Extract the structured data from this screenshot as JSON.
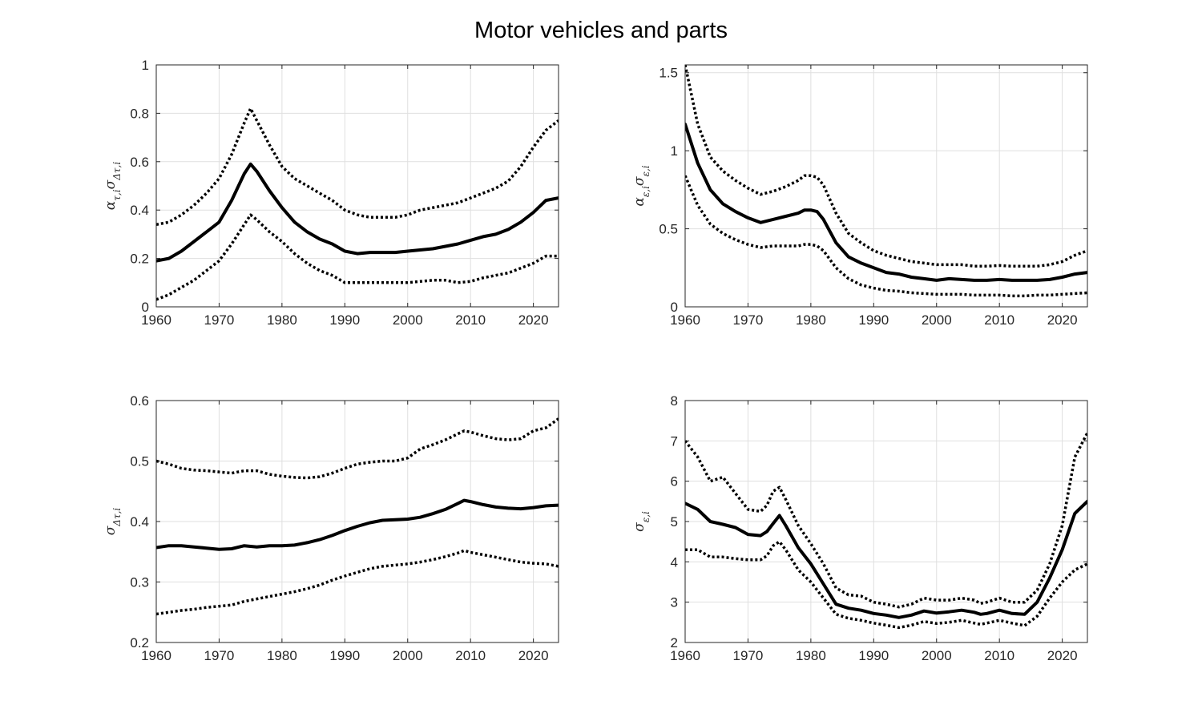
{
  "figure": {
    "title": "Motor vehicles and parts"
  },
  "chart_data": [
    {
      "type": "line",
      "ylabel": "α_{τ,i}σ_{Δτ,i}",
      "xlim": [
        1960,
        2024
      ],
      "ylim": [
        0,
        1
      ],
      "xticks": [
        "1960",
        "1970",
        "1980",
        "1990",
        "2000",
        "2010",
        "2020"
      ],
      "yticks": [
        "0",
        "0.2",
        "0.4",
        "0.6",
        "0.8",
        "1"
      ],
      "grid": true,
      "x": [
        1960,
        1962,
        1964,
        1966,
        1968,
        1970,
        1972,
        1974,
        1975,
        1976,
        1978,
        1980,
        1982,
        1984,
        1986,
        1988,
        1990,
        1992,
        1994,
        1996,
        1998,
        2000,
        2002,
        2004,
        2006,
        2008,
        2010,
        2012,
        2014,
        2016,
        2018,
        2020,
        2022,
        2024
      ],
      "series": [
        {
          "style": "solid",
          "values": [
            0.19,
            0.2,
            0.23,
            0.27,
            0.31,
            0.35,
            0.44,
            0.55,
            0.59,
            0.56,
            0.48,
            0.41,
            0.35,
            0.31,
            0.28,
            0.26,
            0.23,
            0.22,
            0.225,
            0.225,
            0.225,
            0.23,
            0.235,
            0.24,
            0.25,
            0.26,
            0.275,
            0.29,
            0.3,
            0.32,
            0.35,
            0.39,
            0.44,
            0.45
          ]
        },
        {
          "style": "dotted",
          "values": [
            0.34,
            0.35,
            0.38,
            0.42,
            0.47,
            0.53,
            0.63,
            0.76,
            0.82,
            0.77,
            0.67,
            0.58,
            0.53,
            0.5,
            0.47,
            0.44,
            0.4,
            0.38,
            0.37,
            0.37,
            0.37,
            0.38,
            0.4,
            0.41,
            0.42,
            0.43,
            0.45,
            0.47,
            0.49,
            0.52,
            0.58,
            0.66,
            0.73,
            0.77
          ]
        },
        {
          "style": "dotted",
          "values": [
            0.03,
            0.05,
            0.08,
            0.11,
            0.15,
            0.19,
            0.26,
            0.34,
            0.38,
            0.36,
            0.31,
            0.27,
            0.22,
            0.18,
            0.15,
            0.13,
            0.1,
            0.1,
            0.1,
            0.1,
            0.1,
            0.1,
            0.105,
            0.11,
            0.11,
            0.1,
            0.105,
            0.12,
            0.13,
            0.14,
            0.16,
            0.18,
            0.21,
            0.21
          ]
        }
      ]
    },
    {
      "type": "line",
      "ylabel": "α_{ε,i}σ_{ε,i}",
      "xlim": [
        1960,
        2024
      ],
      "ylim": [
        0,
        1.55
      ],
      "xticks": [
        "1960",
        "1970",
        "1980",
        "1990",
        "2000",
        "2010",
        "2020"
      ],
      "yticks": [
        "0",
        "0.5",
        "1",
        "1.5"
      ],
      "grid": true,
      "x": [
        1960,
        1962,
        1964,
        1966,
        1968,
        1970,
        1972,
        1974,
        1976,
        1978,
        1979,
        1980,
        1981,
        1982,
        1984,
        1986,
        1988,
        1990,
        1992,
        1994,
        1996,
        1998,
        2000,
        2002,
        2004,
        2006,
        2008,
        2010,
        2012,
        2014,
        2016,
        2018,
        2020,
        2022,
        2024
      ],
      "series": [
        {
          "style": "solid",
          "values": [
            1.17,
            0.92,
            0.75,
            0.66,
            0.61,
            0.57,
            0.54,
            0.56,
            0.58,
            0.6,
            0.62,
            0.62,
            0.61,
            0.56,
            0.41,
            0.32,
            0.28,
            0.25,
            0.22,
            0.21,
            0.19,
            0.18,
            0.17,
            0.18,
            0.175,
            0.17,
            0.17,
            0.175,
            0.17,
            0.17,
            0.17,
            0.175,
            0.19,
            0.21,
            0.22
          ]
        },
        {
          "style": "dotted",
          "values": [
            1.55,
            1.17,
            0.96,
            0.87,
            0.81,
            0.76,
            0.72,
            0.74,
            0.77,
            0.81,
            0.84,
            0.84,
            0.83,
            0.78,
            0.6,
            0.47,
            0.41,
            0.36,
            0.33,
            0.31,
            0.29,
            0.28,
            0.27,
            0.27,
            0.27,
            0.26,
            0.26,
            0.265,
            0.26,
            0.26,
            0.26,
            0.27,
            0.29,
            0.33,
            0.36
          ]
        },
        {
          "style": "dotted",
          "values": [
            0.84,
            0.65,
            0.53,
            0.47,
            0.43,
            0.4,
            0.38,
            0.39,
            0.39,
            0.39,
            0.4,
            0.4,
            0.39,
            0.36,
            0.25,
            0.18,
            0.14,
            0.12,
            0.105,
            0.1,
            0.09,
            0.085,
            0.08,
            0.08,
            0.08,
            0.075,
            0.075,
            0.075,
            0.07,
            0.07,
            0.075,
            0.075,
            0.08,
            0.085,
            0.09
          ]
        }
      ]
    },
    {
      "type": "line",
      "ylabel": "σ_{Δτ,i}",
      "xlim": [
        1960,
        2024
      ],
      "ylim": [
        0.2,
        0.6
      ],
      "xticks": [
        "1960",
        "1970",
        "1980",
        "1990",
        "2000",
        "2010",
        "2020"
      ],
      "yticks": [
        "0.2",
        "0.3",
        "0.4",
        "0.5",
        "0.6"
      ],
      "grid": true,
      "x": [
        1960,
        1962,
        1964,
        1966,
        1968,
        1970,
        1972,
        1974,
        1976,
        1978,
        1980,
        1982,
        1984,
        1986,
        1988,
        1990,
        1992,
        1994,
        1996,
        1998,
        2000,
        2002,
        2004,
        2006,
        2008,
        2009,
        2010,
        2012,
        2014,
        2016,
        2018,
        2020,
        2022,
        2024
      ],
      "series": [
        {
          "style": "solid",
          "values": [
            0.357,
            0.36,
            0.36,
            0.358,
            0.356,
            0.354,
            0.355,
            0.36,
            0.358,
            0.36,
            0.36,
            0.361,
            0.365,
            0.37,
            0.377,
            0.385,
            0.392,
            0.398,
            0.402,
            0.403,
            0.404,
            0.407,
            0.413,
            0.42,
            0.43,
            0.435,
            0.433,
            0.428,
            0.424,
            0.422,
            0.421,
            0.423,
            0.426,
            0.427
          ]
        },
        {
          "style": "dotted",
          "values": [
            0.5,
            0.495,
            0.488,
            0.485,
            0.484,
            0.482,
            0.48,
            0.484,
            0.484,
            0.478,
            0.475,
            0.473,
            0.472,
            0.474,
            0.48,
            0.488,
            0.495,
            0.498,
            0.5,
            0.5,
            0.505,
            0.52,
            0.527,
            0.535,
            0.545,
            0.55,
            0.548,
            0.542,
            0.537,
            0.535,
            0.537,
            0.55,
            0.555,
            0.57
          ]
        },
        {
          "style": "dotted",
          "values": [
            0.247,
            0.25,
            0.253,
            0.255,
            0.258,
            0.26,
            0.262,
            0.268,
            0.272,
            0.276,
            0.28,
            0.284,
            0.289,
            0.295,
            0.303,
            0.31,
            0.316,
            0.322,
            0.326,
            0.328,
            0.33,
            0.333,
            0.337,
            0.342,
            0.348,
            0.352,
            0.349,
            0.345,
            0.341,
            0.337,
            0.333,
            0.331,
            0.33,
            0.326
          ]
        }
      ]
    },
    {
      "type": "line",
      "ylabel": "σ_{ε,i}",
      "xlim": [
        1960,
        2024
      ],
      "ylim": [
        2,
        8
      ],
      "xticks": [
        "1960",
        "1970",
        "1980",
        "1990",
        "2000",
        "2010",
        "2020"
      ],
      "yticks": [
        "2",
        "3",
        "4",
        "5",
        "6",
        "7",
        "8"
      ],
      "grid": true,
      "x": [
        1960,
        1962,
        1964,
        1966,
        1968,
        1970,
        1972,
        1973,
        1974,
        1975,
        1976,
        1978,
        1980,
        1982,
        1984,
        1986,
        1988,
        1990,
        1992,
        1994,
        1996,
        1998,
        2000,
        2002,
        2004,
        2006,
        2007,
        2008,
        2010,
        2012,
        2014,
        2016,
        2018,
        2020,
        2022,
        2024
      ],
      "series": [
        {
          "style": "solid",
          "values": [
            5.45,
            5.3,
            5.0,
            4.93,
            4.85,
            4.68,
            4.65,
            4.75,
            4.95,
            5.15,
            4.9,
            4.35,
            3.95,
            3.45,
            2.95,
            2.85,
            2.8,
            2.72,
            2.68,
            2.62,
            2.68,
            2.78,
            2.73,
            2.76,
            2.8,
            2.75,
            2.7,
            2.72,
            2.8,
            2.72,
            2.7,
            3.0,
            3.6,
            4.3,
            5.2,
            5.5
          ]
        },
        {
          "style": "dotted",
          "values": [
            7.0,
            6.6,
            6.0,
            6.1,
            5.7,
            5.3,
            5.25,
            5.4,
            5.75,
            5.85,
            5.55,
            4.9,
            4.45,
            3.95,
            3.35,
            3.18,
            3.15,
            3.0,
            2.95,
            2.88,
            2.95,
            3.1,
            3.05,
            3.05,
            3.1,
            3.05,
            2.97,
            3.0,
            3.1,
            3.0,
            3.0,
            3.3,
            3.95,
            4.9,
            6.6,
            7.2
          ]
        },
        {
          "style": "dotted",
          "values": [
            4.3,
            4.3,
            4.12,
            4.12,
            4.08,
            4.05,
            4.05,
            4.15,
            4.4,
            4.5,
            4.3,
            3.8,
            3.5,
            3.1,
            2.7,
            2.6,
            2.55,
            2.48,
            2.43,
            2.37,
            2.43,
            2.52,
            2.47,
            2.5,
            2.55,
            2.48,
            2.45,
            2.48,
            2.55,
            2.48,
            2.42,
            2.65,
            3.1,
            3.5,
            3.8,
            3.95
          ]
        }
      ]
    }
  ]
}
